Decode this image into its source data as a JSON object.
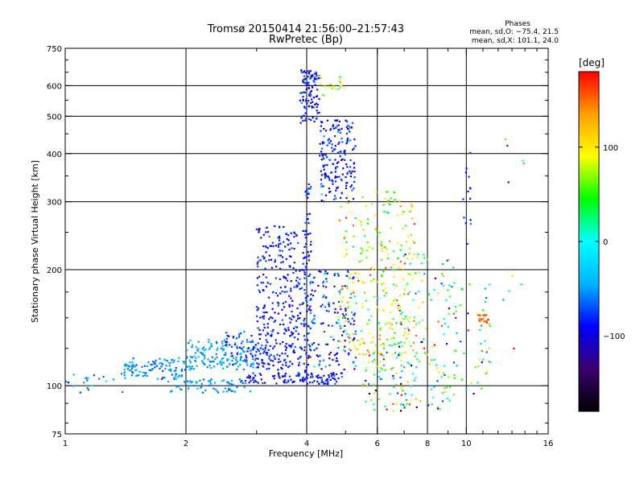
{
  "chart_data": {
    "type": "scatter",
    "title": "Tromsø 20150414 21:56:00–21:57:43",
    "subtitle": "RwPretec (Bp)",
    "xlabel": "Frequency [MHz]",
    "ylabel": "Stationary phase Virtual Height [km]",
    "x_scale": "log",
    "y_scale": "log",
    "xlim": [
      1,
      16
    ],
    "ylim": [
      75,
      750
    ],
    "x_ticks": [
      1,
      2,
      4,
      6,
      8,
      10,
      16
    ],
    "x_tick_labels": [
      "1",
      "2",
      "4",
      "6",
      "8",
      "10",
      "16"
    ],
    "x_minor_ticks": [
      3,
      5,
      7,
      9,
      11,
      12,
      13,
      14,
      15
    ],
    "y_ticks": [
      75,
      100,
      200,
      300,
      400,
      500,
      600,
      750
    ],
    "y_tick_labels": [
      "75",
      "100",
      "200",
      "300",
      "400",
      "500",
      "600",
      "750"
    ],
    "y_minor_ticks": [
      80,
      90,
      125,
      150,
      175,
      250,
      350,
      450,
      550,
      650,
      700
    ],
    "grid_x": [
      2,
      4,
      6,
      8,
      10
    ],
    "grid_y": [
      100,
      200,
      300,
      400,
      500,
      600
    ],
    "colorbar": {
      "label": "[deg]",
      "min": -180,
      "max": 180,
      "ticks": [
        100,
        0,
        -100
      ],
      "tick_labels": [
        "100",
        "0",
        "−100"
      ],
      "colors": [
        "#000000",
        "#3a0070",
        "#0000ff",
        "#00b4ff",
        "#00ffff",
        "#00ff00",
        "#ffff00",
        "#ffa000",
        "#ff0000"
      ]
    },
    "stats": {
      "heading": "Phases",
      "line_o": "mean, sd,O: −75.4, 21.5",
      "line_x": "mean, sd,X: 101.1, 24.0"
    },
    "clusters": [
      {
        "xmin": 1.0,
        "xmax": 1.4,
        "ymin": 96,
        "ymax": 108,
        "phase_mean": -60,
        "phase_sd": 25,
        "count": 20
      },
      {
        "xmin": 1.4,
        "xmax": 2.0,
        "ymin": 104,
        "ymax": 118,
        "phase_mean": -55,
        "phase_sd": 12,
        "count": 110
      },
      {
        "xmin": 2.0,
        "xmax": 3.0,
        "ymin": 110,
        "ymax": 132,
        "phase_mean": -50,
        "phase_sd": 10,
        "count": 150
      },
      {
        "xmin": 1.8,
        "xmax": 2.9,
        "ymin": 96,
        "ymax": 104,
        "phase_mean": -52,
        "phase_sd": 10,
        "count": 70
      },
      {
        "xmin": 2.5,
        "xmax": 3.3,
        "ymin": 112,
        "ymax": 140,
        "phase_mean": -85,
        "phase_sd": 15,
        "count": 70
      },
      {
        "xmin": 2.8,
        "xmax": 4.9,
        "ymin": 101,
        "ymax": 108,
        "phase_mean": -90,
        "phase_sd": 12,
        "count": 110
      },
      {
        "xmin": 3.0,
        "xmax": 4.0,
        "ymin": 110,
        "ymax": 260,
        "phase_mean": -88,
        "phase_sd": 14,
        "count": 330
      },
      {
        "xmin": 3.95,
        "xmax": 4.1,
        "ymin": 95,
        "ymax": 340,
        "phase_mean": -90,
        "phase_sd": 15,
        "count": 70
      },
      {
        "xmin": 4.0,
        "xmax": 5.3,
        "ymin": 110,
        "ymax": 200,
        "phase_mean": -80,
        "phase_sd": 30,
        "count": 160
      },
      {
        "xmin": 3.85,
        "xmax": 4.3,
        "ymin": 480,
        "ymax": 660,
        "phase_mean": -90,
        "phase_sd": 18,
        "count": 110
      },
      {
        "xmin": 4.3,
        "xmax": 5.3,
        "ymin": 300,
        "ymax": 490,
        "phase_mean": -85,
        "phase_sd": 18,
        "count": 180
      },
      {
        "xmin": 4.3,
        "xmax": 5.0,
        "ymin": 560,
        "ymax": 650,
        "phase_mean": 80,
        "phase_sd": 40,
        "count": 20
      },
      {
        "xmin": 4.8,
        "xmax": 7.5,
        "ymin": 120,
        "ymax": 320,
        "phase_mean": 80,
        "phase_sd": 40,
        "count": 250
      },
      {
        "xmin": 5.5,
        "xmax": 7.5,
        "ymin": 85,
        "ymax": 130,
        "phase_mean": 40,
        "phase_sd": 80,
        "count": 90
      },
      {
        "xmin": 6.5,
        "xmax": 9.5,
        "ymin": 85,
        "ymax": 220,
        "phase_mean": 30,
        "phase_sd": 80,
        "count": 140
      },
      {
        "xmin": 9.0,
        "xmax": 11.5,
        "ymin": 95,
        "ymax": 190,
        "phase_mean": 20,
        "phase_sd": 80,
        "count": 45
      },
      {
        "xmin": 10.6,
        "xmax": 11.4,
        "ymin": 143,
        "ymax": 153,
        "phase_mean": 150,
        "phase_sd": 10,
        "count": 20
      },
      {
        "xmin": 9.8,
        "xmax": 10.3,
        "ymin": 230,
        "ymax": 420,
        "phase_mean": -80,
        "phase_sd": 20,
        "count": 14
      },
      {
        "xmin": 12.0,
        "xmax": 14.0,
        "ymin": 90,
        "ymax": 470,
        "phase_mean": 0,
        "phase_sd": 90,
        "count": 10
      }
    ]
  }
}
